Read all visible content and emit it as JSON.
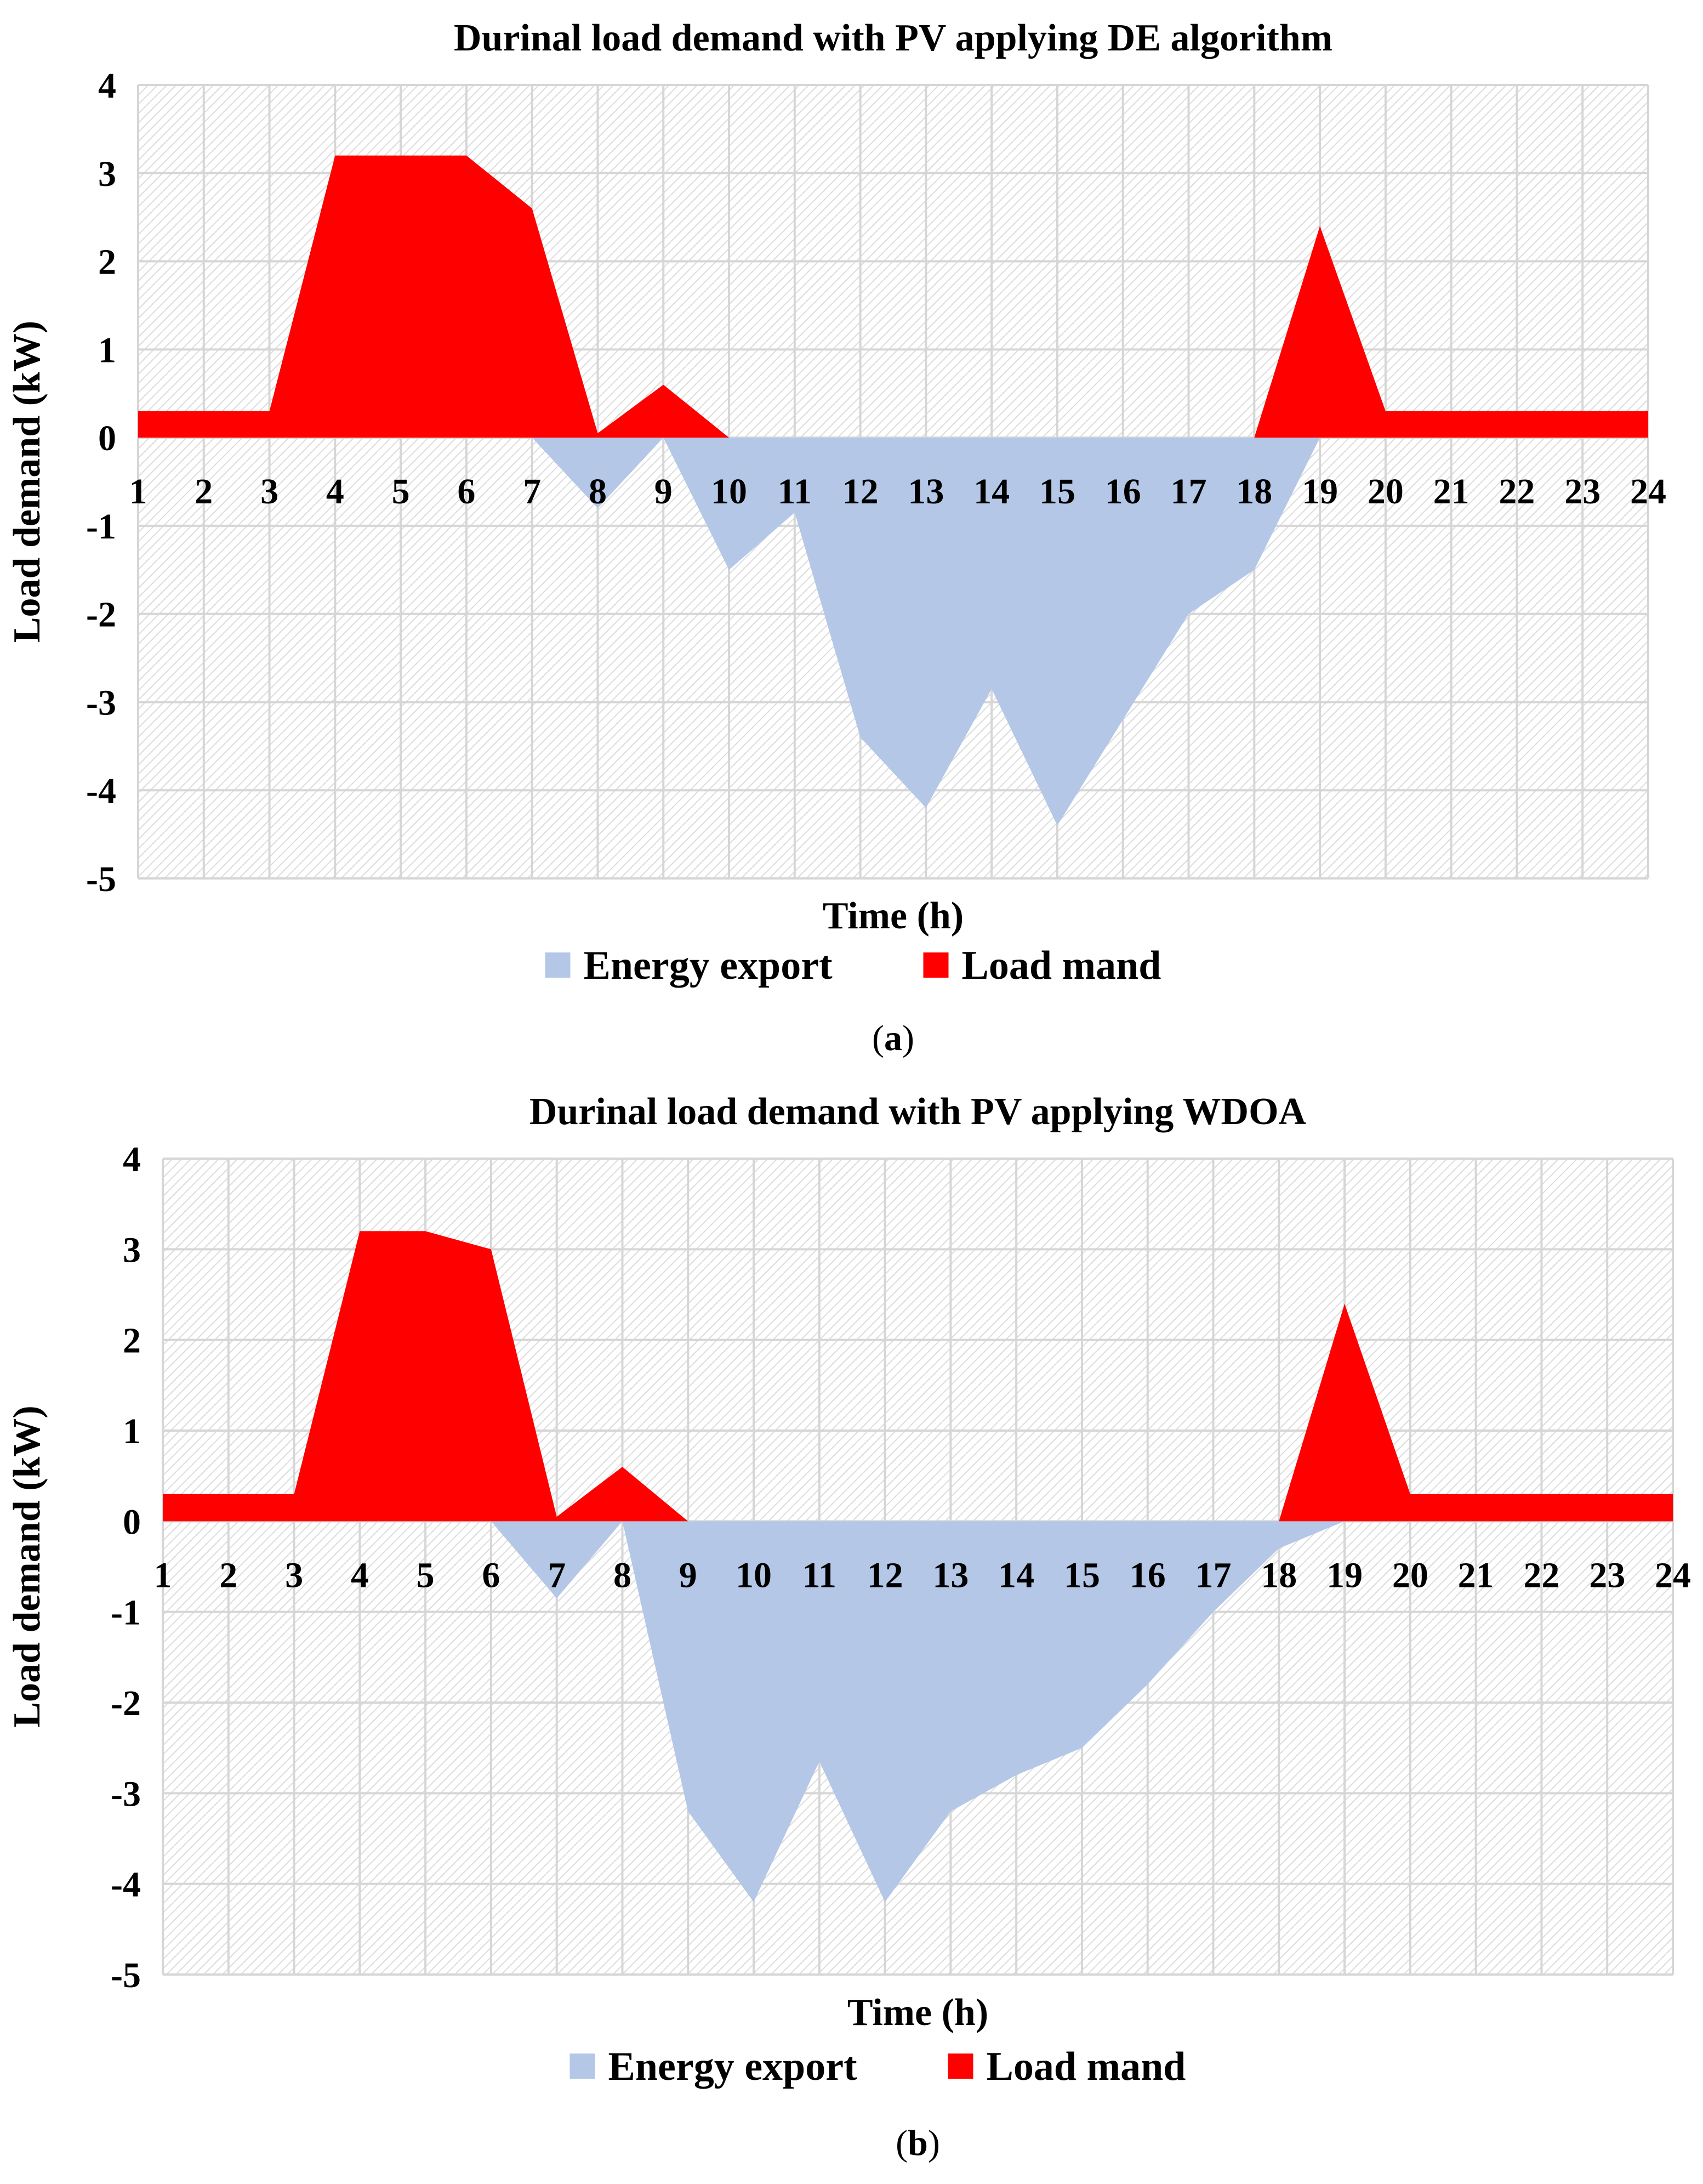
{
  "colors": {
    "export": "#b4c7e7",
    "load": "#ff0000",
    "grid": "#d6d6d6",
    "hatch": "#dcdcdc"
  },
  "chart_data": [
    {
      "type": "area",
      "title": "Durinal load demand with PV applying DE algorithm",
      "xlabel": "Time (h)",
      "ylabel": "Load demand (kW)",
      "ylim": [
        -5,
        4
      ],
      "yticks": [
        "4",
        "3",
        "2",
        "1",
        "0",
        "-1",
        "-2",
        "-3",
        "-4",
        "-5"
      ],
      "caption_letter": "a",
      "x": [
        1,
        2,
        3,
        4,
        5,
        6,
        7,
        8,
        9,
        10,
        11,
        12,
        13,
        14,
        15,
        16,
        17,
        18,
        19,
        20,
        21,
        22,
        23,
        24
      ],
      "series": [
        {
          "name": "Energy export",
          "color_key": "export",
          "values": [
            0,
            0,
            0,
            0,
            0,
            0,
            0,
            -0.8,
            0,
            -1.5,
            -0.85,
            -3.4,
            -4.2,
            -2.85,
            -4.4,
            -3.2,
            -2.0,
            -1.5,
            0,
            0,
            0,
            0,
            0,
            0
          ]
        },
        {
          "name": "Load mand",
          "color_key": "load",
          "values": [
            0.3,
            0.3,
            0.3,
            3.2,
            3.2,
            3.2,
            2.6,
            0.05,
            0.6,
            0,
            0,
            0,
            0,
            0,
            0,
            0,
            0,
            0,
            2.4,
            0.3,
            0.3,
            0.3,
            0.3,
            0.3
          ]
        }
      ]
    },
    {
      "type": "area",
      "title": "Durinal load demand with PV applying WDOA",
      "xlabel": "Time (h)",
      "ylabel": "Load demand (kW)",
      "ylim": [
        -5,
        4
      ],
      "yticks": [
        "4",
        "3",
        "2",
        "1",
        "0",
        "-1",
        "-2",
        "-3",
        "-4",
        "-5"
      ],
      "caption_letter": "b",
      "x": [
        1,
        2,
        3,
        4,
        5,
        6,
        7,
        8,
        9,
        10,
        11,
        12,
        13,
        14,
        15,
        16,
        17,
        18,
        19,
        20,
        21,
        22,
        23,
        24
      ],
      "series": [
        {
          "name": "Energy export",
          "color_key": "export",
          "values": [
            0,
            0,
            0,
            0,
            0,
            0,
            -0.85,
            0,
            -3.2,
            -4.2,
            -2.65,
            -4.2,
            -3.2,
            -2.8,
            -2.5,
            -1.8,
            -1.0,
            -0.3,
            0,
            0,
            0,
            0,
            0,
            0
          ]
        },
        {
          "name": "Load mand",
          "color_key": "load",
          "values": [
            0.3,
            0.3,
            0.3,
            3.2,
            3.2,
            3.0,
            0.05,
            0.6,
            0,
            0,
            0,
            0,
            0,
            0,
            0,
            0,
            0,
            0,
            2.4,
            0.3,
            0.3,
            0.3,
            0.3,
            0.3
          ]
        }
      ]
    }
  ]
}
